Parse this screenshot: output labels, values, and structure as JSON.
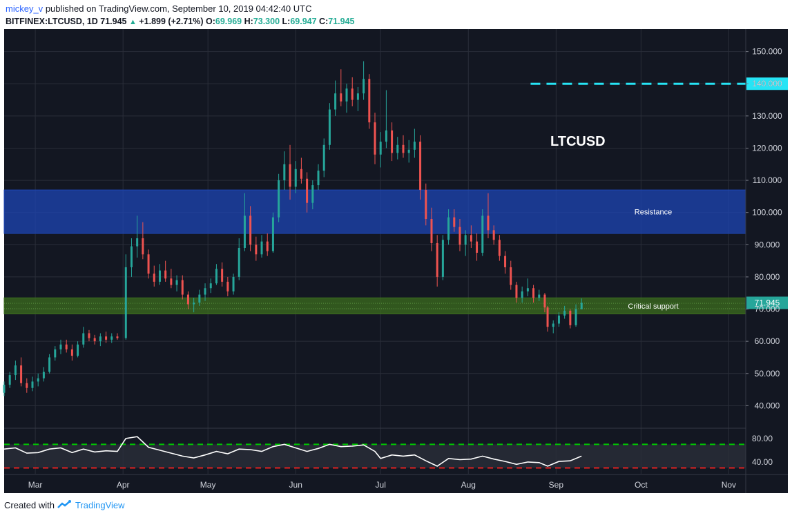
{
  "header": {
    "user": "mickey_v",
    "published": "published on TradingView.com, September 10, 2019 04:42:40 UTC",
    "symbol": "BITFINEX:LTCUSD, 1D",
    "last": "71.945",
    "change": "+1.899 (+2.71%)",
    "o_label": "O:",
    "o": "69.969",
    "h_label": "H:",
    "h": "73.300",
    "l_label": "L:",
    "l": "69.947",
    "c_label": "C:",
    "c": "71.945"
  },
  "footer": {
    "created_with": "Created with",
    "brand": "TradingView"
  },
  "chart_data": {
    "type": "candlestick",
    "title": "LTCUSD",
    "ylim": [
      33,
      157
    ],
    "y_ticks": [
      40,
      50,
      60,
      70,
      80,
      90,
      100,
      110,
      120,
      130,
      140,
      150
    ],
    "y_tick_labels": [
      "40.000",
      "50.000",
      "60.000",
      "70.000",
      "80.000",
      "90.000",
      "100.000",
      "110.000",
      "120.000",
      "130.000",
      "140.000",
      "150.000"
    ],
    "x_labels": [
      "Mar",
      "Apr",
      "May",
      "Jun",
      "Jul",
      "Aug",
      "Sep",
      "Oct",
      "Nov"
    ],
    "x_label_dates": [
      "2019-03-01",
      "2019-04-01",
      "2019-05-01",
      "2019-06-01",
      "2019-07-01",
      "2019-08-01",
      "2019-09-01",
      "2019-10-01",
      "2019-11-01"
    ],
    "date_range": [
      "2019-02-18",
      "2019-11-07"
    ],
    "last_price_label": "71.945",
    "zones": [
      {
        "name": "Resistance",
        "low": 93.5,
        "high": 107,
        "color": "#1e46b4"
      },
      {
        "name": "Critical support",
        "low": 68.5,
        "high": 73.5,
        "color": "#3c6e1e"
      }
    ],
    "target_line": {
      "value": 140,
      "label": "140.000",
      "start": "2019-08-23",
      "color": "#26e4f5"
    },
    "ohlc": [
      {
        "d": "2019-02-18",
        "o": 44.0,
        "h": 47.5,
        "l": 43.0,
        "c": 46.5
      },
      {
        "d": "2019-02-20",
        "o": 46.5,
        "h": 50.5,
        "l": 45.5,
        "c": 49.5
      },
      {
        "d": "2019-02-22",
        "o": 49.5,
        "h": 54.0,
        "l": 48.0,
        "c": 52.5
      },
      {
        "d": "2019-02-24",
        "o": 52.5,
        "h": 55.0,
        "l": 46.0,
        "c": 47.0
      },
      {
        "d": "2019-02-26",
        "o": 47.0,
        "h": 48.5,
        "l": 44.0,
        "c": 45.5
      },
      {
        "d": "2019-02-28",
        "o": 45.5,
        "h": 49.0,
        "l": 44.5,
        "c": 47.5
      },
      {
        "d": "2019-03-02",
        "o": 47.5,
        "h": 50.0,
        "l": 46.0,
        "c": 48.5
      },
      {
        "d": "2019-03-04",
        "o": 48.5,
        "h": 52.0,
        "l": 47.5,
        "c": 50.5
      },
      {
        "d": "2019-03-06",
        "o": 50.5,
        "h": 56.0,
        "l": 50.0,
        "c": 55.0
      },
      {
        "d": "2019-03-08",
        "o": 55.0,
        "h": 58.5,
        "l": 54.0,
        "c": 57.5
      },
      {
        "d": "2019-03-10",
        "o": 57.5,
        "h": 60.5,
        "l": 56.0,
        "c": 59.0
      },
      {
        "d": "2019-03-12",
        "o": 59.0,
        "h": 60.5,
        "l": 56.5,
        "c": 57.5
      },
      {
        "d": "2019-03-14",
        "o": 57.5,
        "h": 59.0,
        "l": 54.0,
        "c": 55.5
      },
      {
        "d": "2019-03-16",
        "o": 55.5,
        "h": 60.0,
        "l": 55.0,
        "c": 59.0
      },
      {
        "d": "2019-03-18",
        "o": 59.0,
        "h": 64.5,
        "l": 58.0,
        "c": 62.5
      },
      {
        "d": "2019-03-20",
        "o": 62.5,
        "h": 63.5,
        "l": 60.0,
        "c": 61.0
      },
      {
        "d": "2019-03-22",
        "o": 61.0,
        "h": 62.0,
        "l": 59.0,
        "c": 60.0
      },
      {
        "d": "2019-03-24",
        "o": 60.0,
        "h": 62.5,
        "l": 58.5,
        "c": 61.5
      },
      {
        "d": "2019-03-26",
        "o": 61.5,
        "h": 63.0,
        "l": 59.5,
        "c": 60.5
      },
      {
        "d": "2019-03-28",
        "o": 60.5,
        "h": 62.5,
        "l": 59.5,
        "c": 61.5
      },
      {
        "d": "2019-03-30",
        "o": 61.5,
        "h": 62.5,
        "l": 60.5,
        "c": 61.0
      },
      {
        "d": "2019-04-02",
        "o": 61.0,
        "h": 87.0,
        "l": 60.5,
        "c": 83.0
      },
      {
        "d": "2019-04-04",
        "o": 83.0,
        "h": 92.0,
        "l": 80.0,
        "c": 89.5
      },
      {
        "d": "2019-04-06",
        "o": 89.5,
        "h": 99.0,
        "l": 86.0,
        "c": 92.0
      },
      {
        "d": "2019-04-08",
        "o": 92.0,
        "h": 97.0,
        "l": 85.5,
        "c": 87.0
      },
      {
        "d": "2019-04-10",
        "o": 87.0,
        "h": 88.5,
        "l": 79.5,
        "c": 81.0
      },
      {
        "d": "2019-04-12",
        "o": 81.0,
        "h": 83.5,
        "l": 77.0,
        "c": 78.5
      },
      {
        "d": "2019-04-14",
        "o": 78.5,
        "h": 84.0,
        "l": 77.5,
        "c": 82.0
      },
      {
        "d": "2019-04-16",
        "o": 82.0,
        "h": 85.0,
        "l": 78.5,
        "c": 79.5
      },
      {
        "d": "2019-04-18",
        "o": 79.5,
        "h": 82.5,
        "l": 76.5,
        "c": 77.5
      },
      {
        "d": "2019-04-20",
        "o": 77.5,
        "h": 80.5,
        "l": 75.5,
        "c": 79.0
      },
      {
        "d": "2019-04-22",
        "o": 79.0,
        "h": 80.5,
        "l": 73.0,
        "c": 74.5
      },
      {
        "d": "2019-04-24",
        "o": 74.5,
        "h": 75.5,
        "l": 70.0,
        "c": 71.5
      },
      {
        "d": "2019-04-26",
        "o": 71.5,
        "h": 73.5,
        "l": 69.0,
        "c": 72.0
      },
      {
        "d": "2019-04-28",
        "o": 72.0,
        "h": 76.0,
        "l": 71.0,
        "c": 74.5
      },
      {
        "d": "2019-04-30",
        "o": 74.5,
        "h": 78.0,
        "l": 72.5,
        "c": 76.5
      },
      {
        "d": "2019-05-02",
        "o": 76.5,
        "h": 79.5,
        "l": 75.0,
        "c": 78.0
      },
      {
        "d": "2019-05-04",
        "o": 78.0,
        "h": 84.0,
        "l": 77.5,
        "c": 82.5
      },
      {
        "d": "2019-05-06",
        "o": 82.5,
        "h": 84.5,
        "l": 77.0,
        "c": 78.5
      },
      {
        "d": "2019-05-08",
        "o": 78.5,
        "h": 80.0,
        "l": 74.0,
        "c": 75.5
      },
      {
        "d": "2019-05-10",
        "o": 75.5,
        "h": 81.0,
        "l": 74.5,
        "c": 80.0
      },
      {
        "d": "2019-05-12",
        "o": 80.0,
        "h": 92.0,
        "l": 79.0,
        "c": 89.0
      },
      {
        "d": "2019-05-14",
        "o": 89.0,
        "h": 106.0,
        "l": 88.0,
        "c": 99.0
      },
      {
        "d": "2019-05-16",
        "o": 99.0,
        "h": 102.0,
        "l": 88.0,
        "c": 90.0
      },
      {
        "d": "2019-05-18",
        "o": 90.0,
        "h": 92.5,
        "l": 85.0,
        "c": 87.0
      },
      {
        "d": "2019-05-20",
        "o": 87.0,
        "h": 93.0,
        "l": 86.0,
        "c": 91.0
      },
      {
        "d": "2019-05-22",
        "o": 91.0,
        "h": 93.5,
        "l": 86.5,
        "c": 88.0
      },
      {
        "d": "2019-05-24",
        "o": 88.0,
        "h": 100.0,
        "l": 87.5,
        "c": 98.5
      },
      {
        "d": "2019-05-26",
        "o": 98.5,
        "h": 112.0,
        "l": 97.0,
        "c": 110.0
      },
      {
        "d": "2019-05-28",
        "o": 110.0,
        "h": 119.0,
        "l": 107.0,
        "c": 115.0
      },
      {
        "d": "2019-05-30",
        "o": 115.0,
        "h": 121.0,
        "l": 104.0,
        "c": 108.0
      },
      {
        "d": "2019-06-01",
        "o": 108.0,
        "h": 116.0,
        "l": 106.0,
        "c": 113.5
      },
      {
        "d": "2019-06-03",
        "o": 113.5,
        "h": 117.0,
        "l": 109.0,
        "c": 110.5
      },
      {
        "d": "2019-06-05",
        "o": 110.5,
        "h": 112.5,
        "l": 100.0,
        "c": 103.0
      },
      {
        "d": "2019-06-07",
        "o": 103.0,
        "h": 110.0,
        "l": 101.0,
        "c": 108.5
      },
      {
        "d": "2019-06-09",
        "o": 108.5,
        "h": 115.0,
        "l": 107.0,
        "c": 113.0
      },
      {
        "d": "2019-06-11",
        "o": 113.0,
        "h": 123.0,
        "l": 111.0,
        "c": 121.0
      },
      {
        "d": "2019-06-13",
        "o": 121.0,
        "h": 134.0,
        "l": 119.5,
        "c": 132.0
      },
      {
        "d": "2019-06-15",
        "o": 132.0,
        "h": 141.0,
        "l": 130.0,
        "c": 137.0
      },
      {
        "d": "2019-06-17",
        "o": 137.0,
        "h": 144.5,
        "l": 133.0,
        "c": 134.5
      },
      {
        "d": "2019-06-19",
        "o": 134.5,
        "h": 140.0,
        "l": 131.0,
        "c": 138.5
      },
      {
        "d": "2019-06-21",
        "o": 138.5,
        "h": 142.0,
        "l": 133.0,
        "c": 135.0
      },
      {
        "d": "2019-06-23",
        "o": 135.0,
        "h": 139.0,
        "l": 131.5,
        "c": 137.0
      },
      {
        "d": "2019-06-25",
        "o": 137.0,
        "h": 147.0,
        "l": 135.0,
        "c": 141.5
      },
      {
        "d": "2019-06-27",
        "o": 141.5,
        "h": 143.0,
        "l": 126.0,
        "c": 128.0
      },
      {
        "d": "2019-06-29",
        "o": 128.0,
        "h": 131.0,
        "l": 115.0,
        "c": 118.0
      },
      {
        "d": "2019-07-01",
        "o": 118.0,
        "h": 125.0,
        "l": 114.0,
        "c": 122.0
      },
      {
        "d": "2019-07-03",
        "o": 122.0,
        "h": 138.0,
        "l": 120.0,
        "c": 125.5
      },
      {
        "d": "2019-07-05",
        "o": 125.5,
        "h": 128.0,
        "l": 116.0,
        "c": 118.5
      },
      {
        "d": "2019-07-07",
        "o": 118.5,
        "h": 123.5,
        "l": 116.5,
        "c": 121.0
      },
      {
        "d": "2019-07-09",
        "o": 121.0,
        "h": 124.0,
        "l": 117.0,
        "c": 118.5
      },
      {
        "d": "2019-07-11",
        "o": 118.5,
        "h": 122.5,
        "l": 115.5,
        "c": 119.5
      },
      {
        "d": "2019-07-13",
        "o": 119.5,
        "h": 126.0,
        "l": 117.0,
        "c": 122.0
      },
      {
        "d": "2019-07-15",
        "o": 122.0,
        "h": 124.0,
        "l": 104.0,
        "c": 107.0
      },
      {
        "d": "2019-07-17",
        "o": 107.0,
        "h": 109.0,
        "l": 96.0,
        "c": 98.0
      },
      {
        "d": "2019-07-19",
        "o": 98.0,
        "h": 101.5,
        "l": 88.0,
        "c": 90.5
      },
      {
        "d": "2019-07-21",
        "o": 90.5,
        "h": 93.0,
        "l": 77.0,
        "c": 80.0
      },
      {
        "d": "2019-07-23",
        "o": 80.0,
        "h": 93.0,
        "l": 79.0,
        "c": 91.5
      },
      {
        "d": "2019-07-25",
        "o": 91.5,
        "h": 101.0,
        "l": 90.0,
        "c": 98.5
      },
      {
        "d": "2019-07-27",
        "o": 98.5,
        "h": 101.0,
        "l": 94.0,
        "c": 95.5
      },
      {
        "d": "2019-07-29",
        "o": 95.5,
        "h": 98.0,
        "l": 88.0,
        "c": 90.0
      },
      {
        "d": "2019-07-31",
        "o": 90.0,
        "h": 94.5,
        "l": 86.5,
        "c": 93.0
      },
      {
        "d": "2019-08-02",
        "o": 93.0,
        "h": 96.0,
        "l": 89.0,
        "c": 91.0
      },
      {
        "d": "2019-08-04",
        "o": 91.0,
        "h": 93.5,
        "l": 85.0,
        "c": 87.5
      },
      {
        "d": "2019-08-06",
        "o": 87.5,
        "h": 101.0,
        "l": 86.5,
        "c": 99.0
      },
      {
        "d": "2019-08-08",
        "o": 99.0,
        "h": 106.0,
        "l": 92.0,
        "c": 94.5
      },
      {
        "d": "2019-08-10",
        "o": 94.5,
        "h": 96.0,
        "l": 90.0,
        "c": 91.5
      },
      {
        "d": "2019-08-12",
        "o": 91.5,
        "h": 93.0,
        "l": 85.0,
        "c": 86.5
      },
      {
        "d": "2019-08-14",
        "o": 86.5,
        "h": 88.0,
        "l": 81.0,
        "c": 83.0
      },
      {
        "d": "2019-08-16",
        "o": 83.0,
        "h": 85.0,
        "l": 76.0,
        "c": 77.5
      },
      {
        "d": "2019-08-18",
        "o": 77.5,
        "h": 78.5,
        "l": 72.0,
        "c": 73.5
      },
      {
        "d": "2019-08-20",
        "o": 73.5,
        "h": 77.0,
        "l": 72.0,
        "c": 75.5
      },
      {
        "d": "2019-08-22",
        "o": 75.5,
        "h": 79.5,
        "l": 74.0,
        "c": 76.5
      },
      {
        "d": "2019-08-24",
        "o": 76.5,
        "h": 77.5,
        "l": 72.0,
        "c": 73.5
      },
      {
        "d": "2019-08-26",
        "o": 73.5,
        "h": 76.0,
        "l": 72.5,
        "c": 74.5
      },
      {
        "d": "2019-08-28",
        "o": 74.5,
        "h": 75.0,
        "l": 69.0,
        "c": 70.5
      },
      {
        "d": "2019-08-29",
        "o": 70.5,
        "h": 71.0,
        "l": 63.0,
        "c": 64.5
      },
      {
        "d": "2019-08-31",
        "o": 64.5,
        "h": 66.5,
        "l": 62.5,
        "c": 65.5
      },
      {
        "d": "2019-09-02",
        "o": 65.5,
        "h": 69.0,
        "l": 64.5,
        "c": 68.0
      },
      {
        "d": "2019-09-04",
        "o": 68.0,
        "h": 71.0,
        "l": 67.0,
        "c": 69.5
      },
      {
        "d": "2019-09-06",
        "o": 69.5,
        "h": 70.0,
        "l": 64.0,
        "c": 65.0
      },
      {
        "d": "2019-09-08",
        "o": 65.0,
        "h": 71.5,
        "l": 64.5,
        "c": 70.0
      },
      {
        "d": "2019-09-10",
        "o": 69.969,
        "h": 73.3,
        "l": 69.947,
        "c": 71.945
      }
    ],
    "rsi": {
      "y_ticks": [
        40,
        80
      ],
      "y_tick_labels": [
        "40.00",
        "80.00"
      ],
      "ylim": [
        20,
        95
      ],
      "levels": [
        {
          "value": 70,
          "color": "#00c800"
        },
        {
          "value": 30,
          "color": "#e02020"
        }
      ],
      "points": [
        {
          "d": "2019-02-18",
          "v": 62
        },
        {
          "d": "2019-02-22",
          "v": 64
        },
        {
          "d": "2019-02-26",
          "v": 55
        },
        {
          "d": "2019-03-02",
          "v": 56
        },
        {
          "d": "2019-03-06",
          "v": 62
        },
        {
          "d": "2019-03-10",
          "v": 64
        },
        {
          "d": "2019-03-14",
          "v": 56
        },
        {
          "d": "2019-03-18",
          "v": 62
        },
        {
          "d": "2019-03-22",
          "v": 57
        },
        {
          "d": "2019-03-26",
          "v": 59
        },
        {
          "d": "2019-03-30",
          "v": 58
        },
        {
          "d": "2019-04-02",
          "v": 80
        },
        {
          "d": "2019-04-06",
          "v": 83
        },
        {
          "d": "2019-04-10",
          "v": 65
        },
        {
          "d": "2019-04-14",
          "v": 60
        },
        {
          "d": "2019-04-18",
          "v": 55
        },
        {
          "d": "2019-04-22",
          "v": 50
        },
        {
          "d": "2019-04-26",
          "v": 47
        },
        {
          "d": "2019-04-30",
          "v": 52
        },
        {
          "d": "2019-05-04",
          "v": 58
        },
        {
          "d": "2019-05-08",
          "v": 54
        },
        {
          "d": "2019-05-12",
          "v": 62
        },
        {
          "d": "2019-05-16",
          "v": 61
        },
        {
          "d": "2019-05-20",
          "v": 58
        },
        {
          "d": "2019-05-24",
          "v": 66
        },
        {
          "d": "2019-05-28",
          "v": 70
        },
        {
          "d": "2019-06-01",
          "v": 64
        },
        {
          "d": "2019-06-05",
          "v": 58
        },
        {
          "d": "2019-06-09",
          "v": 63
        },
        {
          "d": "2019-06-13",
          "v": 70
        },
        {
          "d": "2019-06-17",
          "v": 66
        },
        {
          "d": "2019-06-21",
          "v": 67
        },
        {
          "d": "2019-06-25",
          "v": 69
        },
        {
          "d": "2019-06-29",
          "v": 58
        },
        {
          "d": "2019-07-01",
          "v": 46
        },
        {
          "d": "2019-07-05",
          "v": 52
        },
        {
          "d": "2019-07-09",
          "v": 50
        },
        {
          "d": "2019-07-13",
          "v": 52
        },
        {
          "d": "2019-07-17",
          "v": 42
        },
        {
          "d": "2019-07-21",
          "v": 33
        },
        {
          "d": "2019-07-25",
          "v": 46
        },
        {
          "d": "2019-07-29",
          "v": 44
        },
        {
          "d": "2019-08-02",
          "v": 45
        },
        {
          "d": "2019-08-06",
          "v": 50
        },
        {
          "d": "2019-08-10",
          "v": 45
        },
        {
          "d": "2019-08-14",
          "v": 41
        },
        {
          "d": "2019-08-18",
          "v": 36
        },
        {
          "d": "2019-08-22",
          "v": 40
        },
        {
          "d": "2019-08-26",
          "v": 39
        },
        {
          "d": "2019-08-29",
          "v": 33
        },
        {
          "d": "2019-09-02",
          "v": 41
        },
        {
          "d": "2019-09-06",
          "v": 42
        },
        {
          "d": "2019-09-10",
          "v": 50
        }
      ]
    }
  }
}
